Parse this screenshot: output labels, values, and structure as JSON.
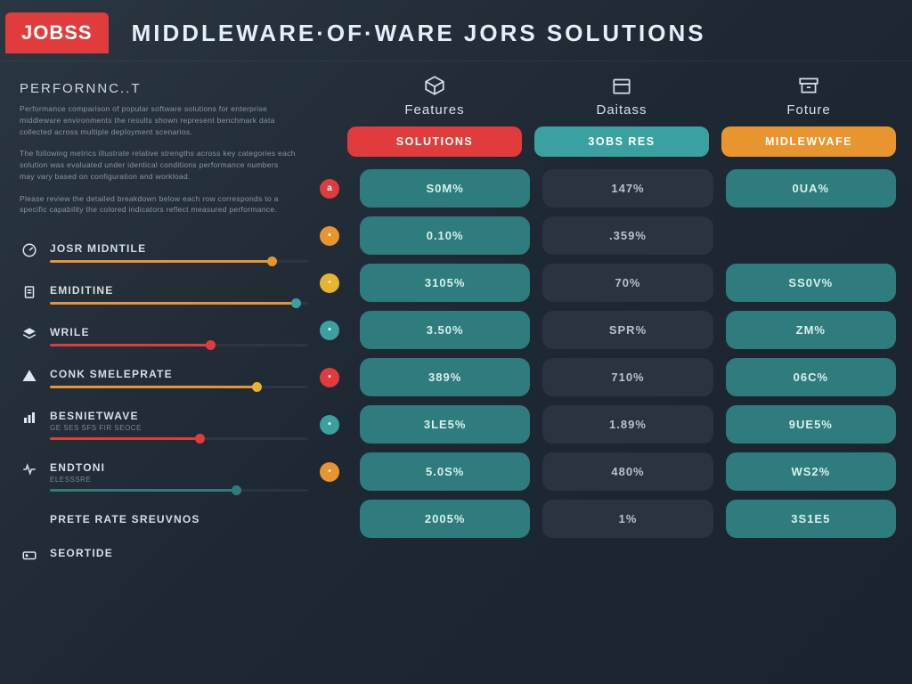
{
  "header": {
    "logo": "JOBSS",
    "title": "MIDDLEWARE·OF·WARE JORS SOLUTIONS"
  },
  "colors": {
    "red": "#e03c3c",
    "orange": "#e8952f",
    "teal": "#2e7c7d",
    "dark_cell": "#2a3440",
    "yellow": "#e8b32f",
    "muted": "#8a96a2",
    "panel_text": "#d6dee6"
  },
  "left": {
    "section_label": "PERFORNNC..T",
    "para1": "Performance comparison of popular software solutions for enterprise middleware environments the results shown represent benchmark data collected across multiple deployment scenarios.",
    "para2": "The following metrics illustrate relative strengths across key categories each solution was evaluated under identical conditions performance numbers may vary based on configuration and workload.",
    "para3": "Please review the detailed breakdown below each row corresponds to a specific capability the colored indicators reflect measured performance.",
    "features": [
      {
        "icon": "gauge",
        "label": "JOSR MIDNTILE",
        "sub": "",
        "bar_pct": 86,
        "bar_color": "#e8952f",
        "dot_color": "#e8952f"
      },
      {
        "icon": "doc",
        "label": "EMIDITINE",
        "sub": "",
        "bar_pct": 95,
        "bar_color": "#e8952f",
        "dot_color": "#3aa0a0"
      },
      {
        "icon": "layers",
        "label": "WRILE",
        "sub": "",
        "bar_pct": 62,
        "bar_color": "#e03c3c",
        "dot_color": "#e03c3c"
      },
      {
        "icon": "warn",
        "label": "CONK SMELEPRATE",
        "sub": "",
        "bar_pct": 80,
        "bar_color": "#e8952f",
        "dot_color": "#e8b32f"
      },
      {
        "icon": "chart",
        "label": "BESNIETWAVE",
        "sub": "GE SES SFS FIR SEOCE",
        "bar_pct": 58,
        "bar_color": "#e03c3c",
        "dot_color": "#e03c3c"
      },
      {
        "icon": "pulse",
        "label": "ENDTONI",
        "sub": "ELESSSRE",
        "bar_pct": 72,
        "bar_color": "#2e7c7d",
        "dot_color": "#2e7c7d"
      },
      {
        "icon": "none",
        "label": "PRETE RATE SREUVNOS",
        "sub": "",
        "bar_pct": 0,
        "bar_color": "#2e7c7d",
        "dot_color": "#2e7c7d",
        "no_bar": true
      },
      {
        "icon": "drive",
        "label": "SEORTIDE",
        "sub": "",
        "bar_pct": 0,
        "bar_color": "#2e7c7d",
        "dot_color": "#2e7c7d",
        "no_bar": true
      }
    ]
  },
  "table": {
    "col_icons": [
      "cube",
      "box",
      "archive"
    ],
    "col_labels": [
      "Features",
      "Daitass",
      "Foture"
    ],
    "sub_headers": [
      {
        "label": "SOLUTIONS",
        "bg": "#e03c3c",
        "fg": "#ffffff"
      },
      {
        "label": "3OBS RES",
        "bg": "#3aa0a0",
        "fg": "#ffffff"
      },
      {
        "label": "MIDLEWVAFE",
        "bg": "#e8952f",
        "fg": "#ffffff"
      }
    ],
    "row_icons": [
      {
        "bg": "#e03c3c",
        "glyph": "a"
      },
      {
        "bg": "#e8952f",
        "glyph": "•"
      },
      {
        "bg": "#e8b32f",
        "glyph": "•"
      },
      {
        "bg": "#3aa0a0",
        "glyph": "•"
      },
      {
        "bg": "#e03c3c",
        "glyph": "•"
      },
      {
        "bg": "#3aa0a0",
        "glyph": "•"
      },
      {
        "bg": "#e8952f",
        "glyph": "•"
      }
    ],
    "rows": [
      [
        {
          "v": "S0M%",
          "t": "teal"
        },
        {
          "v": "147%",
          "t": "dark"
        },
        {
          "v": "0UA%",
          "t": "teal"
        }
      ],
      [
        {
          "v": "0.10%",
          "t": "teal"
        },
        {
          "v": ".359%",
          "t": "dark"
        },
        {
          "v": "",
          "t": "dark",
          "empty": true
        }
      ],
      [
        {
          "v": "3105%",
          "t": "teal"
        },
        {
          "v": "70%",
          "t": "dark"
        },
        {
          "v": "SS0V%",
          "t": "teal"
        }
      ],
      [
        {
          "v": "3.50%",
          "t": "teal"
        },
        {
          "v": "SPR%",
          "t": "dark"
        },
        {
          "v": "ZM%",
          "t": "teal"
        }
      ],
      [
        {
          "v": "389%",
          "t": "teal"
        },
        {
          "v": "710%",
          "t": "dark"
        },
        {
          "v": "06C%",
          "t": "teal"
        }
      ],
      [
        {
          "v": "3LE5%",
          "t": "teal"
        },
        {
          "v": "1.89%",
          "t": "dark"
        },
        {
          "v": "9UE5%",
          "t": "teal"
        }
      ],
      [
        {
          "v": "5.0S%",
          "t": "teal"
        },
        {
          "v": "480%",
          "t": "dark"
        },
        {
          "v": "WS2%",
          "t": "teal"
        }
      ],
      [
        {
          "v": "2005%",
          "t": "teal"
        },
        {
          "v": "1%",
          "t": "dark"
        },
        {
          "v": "3S1E5",
          "t": "teal"
        }
      ]
    ]
  }
}
